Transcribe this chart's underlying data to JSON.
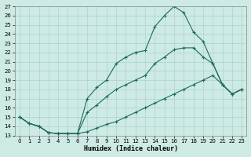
{
  "xlabel": "Humidex (Indice chaleur)",
  "background_color": "#ceeae4",
  "grid_color": "#aad4cc",
  "line_color": "#1a6b5a",
  "x_values": [
    0,
    1,
    2,
    3,
    4,
    5,
    6,
    7,
    8,
    9,
    10,
    11,
    12,
    13,
    14,
    15,
    16,
    17,
    18,
    19,
    20,
    21,
    22,
    23
  ],
  "line1_y": [
    15.0,
    14.3,
    14.0,
    13.3,
    13.2,
    13.2,
    13.2,
    17.0,
    18.2,
    19.0,
    20.8,
    21.5,
    22.0,
    22.2,
    24.8,
    26.0,
    27.0,
    26.3,
    24.2,
    23.2,
    20.8,
    18.5,
    17.5,
    18.0
  ],
  "line2_y": [
    15.0,
    14.3,
    14.0,
    13.3,
    13.2,
    13.2,
    13.2,
    13.4,
    13.8,
    14.2,
    14.5,
    15.0,
    15.5,
    16.0,
    16.5,
    17.0,
    17.5,
    18.0,
    18.5,
    19.0,
    19.5,
    18.5,
    17.5,
    18.0
  ],
  "line3_y": [
    15.0,
    14.3,
    14.0,
    13.3,
    13.2,
    13.2,
    13.2,
    15.5,
    16.3,
    17.2,
    18.0,
    18.5,
    19.0,
    19.5,
    20.8,
    21.5,
    22.3,
    22.5,
    22.5,
    21.5,
    20.8,
    18.5,
    17.5,
    18.0
  ],
  "ylim": [
    13,
    27
  ],
  "xlim": [
    -0.5,
    23.5
  ],
  "yticks": [
    13,
    14,
    15,
    16,
    17,
    18,
    19,
    20,
    21,
    22,
    23,
    24,
    25,
    26,
    27
  ],
  "xticks": [
    0,
    1,
    2,
    3,
    4,
    5,
    6,
    7,
    8,
    9,
    10,
    11,
    12,
    13,
    14,
    15,
    16,
    17,
    18,
    19,
    20,
    21,
    22,
    23
  ]
}
